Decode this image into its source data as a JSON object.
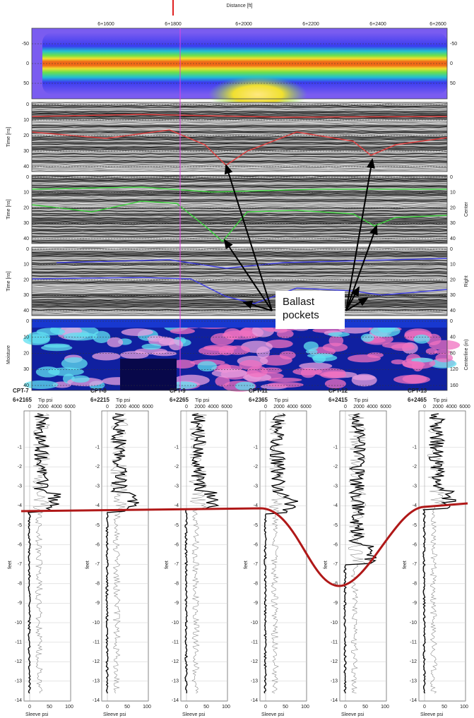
{
  "radargram": {
    "x_axis_title": "Distance [ft]",
    "x_ticks": [
      "6+1600",
      "6+1800",
      "6+2000",
      "6+2200",
      "6+2400",
      "6+2600"
    ],
    "panels": [
      {
        "left_ticks": [
          "-50",
          "0",
          "50"
        ],
        "right_ticks": [
          "-50",
          "0",
          "50"
        ]
      },
      {
        "y_label": "Time [ns]",
        "left_ticks": [
          "0",
          "10",
          "20",
          "30",
          "40"
        ]
      },
      {
        "y_label": "Time [ns]",
        "left_ticks": [
          "0",
          "10",
          "20",
          "30",
          "40"
        ],
        "side_label": "Center",
        "right_ticks": [
          "0",
          "10",
          "20",
          "30",
          "40"
        ]
      },
      {
        "y_label": "Time [ns]",
        "left_ticks": [
          "0",
          "10",
          "20",
          "30",
          "40"
        ],
        "side_label": "Right",
        "right_ticks": [
          "0",
          "10",
          "20",
          "30",
          "40"
        ]
      },
      {
        "y_label": "Moisture",
        "left_ticks": [
          "0",
          "10",
          "20",
          "30",
          "40"
        ],
        "side_label": "Centerline (in)",
        "right_ticks": [
          "0",
          "40",
          "80",
          "120",
          "160"
        ]
      }
    ],
    "annotation": [
      "Ballast",
      "pockets"
    ]
  },
  "cpt_logs": [
    {
      "name": "CPT-7",
      "station": "6+2165"
    },
    {
      "name": "CPT-8",
      "station": "6+2215"
    },
    {
      "name": "CPT-9",
      "station": "6+2265"
    },
    {
      "name": "CPT-11",
      "station": "6+2365"
    },
    {
      "name": "CPT-12",
      "station": "6+2415"
    },
    {
      "name": "CPT-13",
      "station": "6+2465"
    }
  ],
  "cpt_axes": {
    "tip_label": "Tip psi",
    "tip_ticks": [
      "0",
      "2000",
      "4000",
      "6000"
    ],
    "sleeve_label": "Sleeve psi",
    "sleeve_ticks": [
      "0",
      "50",
      "100"
    ],
    "depth_label": "feet",
    "depth_ticks": [
      "-1",
      "-2",
      "-3",
      "-4",
      "-5",
      "-6",
      "-7",
      "-8",
      "-9",
      "-10",
      "-11",
      "-12",
      "-13",
      "-14"
    ]
  }
}
